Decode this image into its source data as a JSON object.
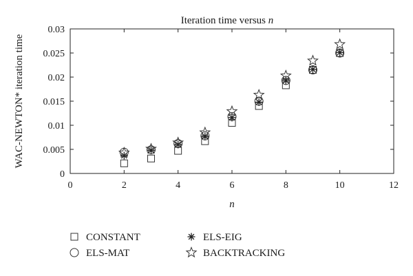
{
  "chart_data": {
    "type": "scatter",
    "title": "Iteration time versus ",
    "title_italic": "n",
    "xlabel": "n",
    "ylabel": "WAC-NEWTON* iteration time",
    "xlim": [
      0,
      12
    ],
    "ylim": [
      0,
      0.03
    ],
    "xticks": [
      "0",
      "2",
      "4",
      "6",
      "8",
      "10",
      "12"
    ],
    "yticks": [
      "0",
      "0.005",
      "0.01",
      "0.015",
      "0.02",
      "0.025",
      "0.03"
    ],
    "grid": false,
    "legend_position": "bottom",
    "x": [
      2,
      3,
      4,
      5,
      6,
      7,
      8,
      9,
      10
    ],
    "series": [
      {
        "name": "CONSTANT",
        "marker": "square",
        "values": [
          0.0021,
          0.0031,
          0.0047,
          0.0067,
          0.0105,
          0.014,
          0.0183,
          0.0215,
          0.025
        ]
      },
      {
        "name": "ELS-MAT",
        "marker": "circle",
        "values": [
          0.0044,
          0.0049,
          0.0062,
          0.0078,
          0.0118,
          0.015,
          0.0193,
          0.0215,
          0.025
        ]
      },
      {
        "name": "ELS-EIG",
        "marker": "asterisk",
        "values": [
          0.0037,
          0.0048,
          0.006,
          0.0077,
          0.0116,
          0.0148,
          0.0193,
          0.0216,
          0.0251
        ]
      },
      {
        "name": "BACKTRACKING",
        "marker": "star",
        "values": [
          0.0043,
          0.0051,
          0.0064,
          0.0085,
          0.0129,
          0.0163,
          0.0203,
          0.0234,
          0.0268
        ]
      }
    ]
  }
}
